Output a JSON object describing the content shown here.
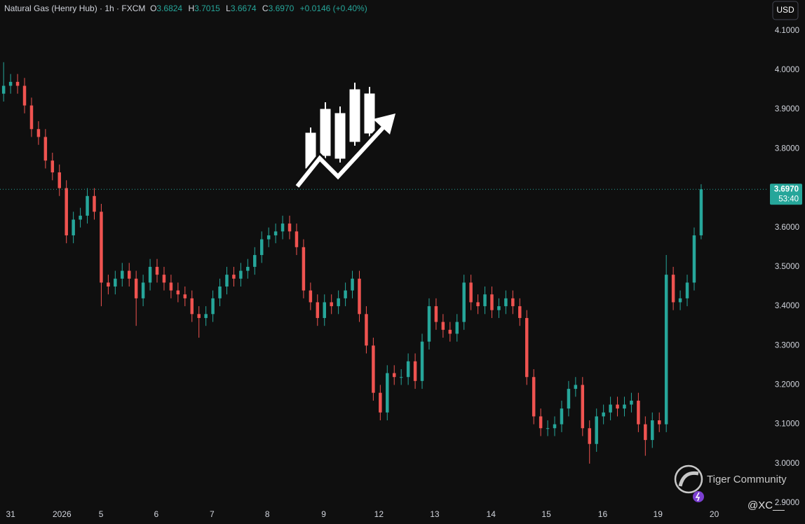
{
  "header": {
    "symbol": "Natural Gas (Henry Hub) · 1h · FXCM",
    "o_key": "O",
    "o": "3.6824",
    "h_key": "H",
    "h": "3.7015",
    "l_key": "L",
    "l": "3.6674",
    "c_key": "C",
    "c": "3.6970",
    "change": "+0.0146 (+0.40%)",
    "currency": "USD"
  },
  "watermark": {
    "brand": "Tiger Community",
    "handle": "@XC__"
  },
  "chart_data": {
    "type": "candlestick",
    "x": [
      -0.125,
      0,
      0.125,
      0.25,
      0.375,
      0.5,
      0.625,
      0.75,
      0.875,
      1,
      1.125,
      1.25,
      1.375,
      1.5,
      1.625,
      1.75,
      1.875,
      2,
      2.125,
      2.25,
      2.375,
      2.5,
      2.625,
      2.75,
      2.875,
      3,
      3.125,
      3.25,
      3.375,
      3.5,
      3.625,
      3.75,
      3.875,
      4,
      4.125,
      4.25,
      4.375,
      4.5,
      4.625,
      4.75,
      4.875,
      5,
      5.125,
      5.25,
      5.375,
      5.5,
      5.625,
      5.75,
      5.875,
      6,
      6.125,
      6.25,
      6.375,
      6.5,
      6.625,
      6.75,
      6.875,
      7,
      7.125,
      7.25,
      7.375,
      7.5,
      7.625,
      7.75,
      7.875,
      8,
      8.125,
      8.25,
      8.375,
      8.5,
      8.625,
      8.75,
      8.875,
      9,
      9.125,
      9.25,
      9.375,
      9.5,
      9.625,
      9.75,
      9.875,
      10,
      10.125,
      10.25,
      10.375,
      10.5,
      10.625,
      10.75,
      10.875,
      11,
      11.125,
      11.25,
      11.375,
      11.5,
      11.625,
      11.75,
      11.875,
      12,
      12.125,
      12.25,
      12.375
    ],
    "open": [
      3.94,
      3.96,
      3.97,
      3.96,
      3.91,
      3.85,
      3.83,
      3.77,
      3.74,
      3.7,
      3.58,
      3.62,
      3.63,
      3.68,
      3.64,
      3.46,
      3.45,
      3.47,
      3.49,
      3.47,
      3.42,
      3.46,
      3.5,
      3.48,
      3.46,
      3.44,
      3.43,
      3.42,
      3.38,
      3.37,
      3.38,
      3.42,
      3.45,
      3.48,
      3.47,
      3.49,
      3.5,
      3.53,
      3.57,
      3.58,
      3.59,
      3.61,
      3.59,
      3.55,
      3.44,
      3.41,
      3.37,
      3.41,
      3.4,
      3.42,
      3.44,
      3.47,
      3.38,
      3.3,
      3.18,
      3.13,
      3.23,
      3.22,
      3.22,
      3.26,
      3.21,
      3.31,
      3.4,
      3.36,
      3.34,
      3.33,
      3.36,
      3.46,
      3.41,
      3.4,
      3.43,
      3.39,
      3.4,
      3.42,
      3.4,
      3.37,
      3.22,
      3.12,
      3.09,
      3.09,
      3.1,
      3.14,
      3.19,
      3.2,
      3.09,
      3.05,
      3.12,
      3.13,
      3.15,
      3.14,
      3.15,
      3.16,
      3.1,
      3.06,
      3.11,
      3.1,
      3.48,
      3.41,
      3.42,
      3.46,
      3.58
    ],
    "high": [
      4.02,
      3.99,
      3.99,
      3.98,
      3.93,
      3.87,
      3.85,
      3.79,
      3.76,
      3.72,
      3.64,
      3.65,
      3.7,
      3.7,
      3.66,
      3.48,
      3.49,
      3.51,
      3.51,
      3.49,
      3.48,
      3.52,
      3.52,
      3.5,
      3.48,
      3.46,
      3.45,
      3.44,
      3.4,
      3.4,
      3.44,
      3.47,
      3.5,
      3.5,
      3.51,
      3.52,
      3.55,
      3.59,
      3.6,
      3.61,
      3.63,
      3.63,
      3.61,
      3.57,
      3.46,
      3.43,
      3.43,
      3.43,
      3.44,
      3.46,
      3.49,
      3.49,
      3.4,
      3.32,
      3.2,
      3.25,
      3.25,
      3.24,
      3.28,
      3.28,
      3.33,
      3.42,
      3.42,
      3.38,
      3.36,
      3.38,
      3.48,
      3.48,
      3.43,
      3.45,
      3.45,
      3.42,
      3.44,
      3.44,
      3.42,
      3.39,
      3.24,
      3.14,
      3.11,
      3.12,
      3.16,
      3.21,
      3.22,
      3.22,
      3.11,
      3.14,
      3.15,
      3.17,
      3.17,
      3.17,
      3.18,
      3.18,
      3.12,
      3.13,
      3.13,
      3.53,
      3.5,
      3.44,
      3.48,
      3.6,
      3.71
    ],
    "low": [
      3.92,
      3.94,
      3.94,
      3.89,
      3.83,
      3.81,
      3.75,
      3.72,
      3.68,
      3.56,
      3.56,
      3.6,
      3.61,
      3.62,
      3.4,
      3.43,
      3.43,
      3.45,
      3.45,
      3.35,
      3.4,
      3.44,
      3.46,
      3.44,
      3.42,
      3.41,
      3.4,
      3.36,
      3.32,
      3.35,
      3.36,
      3.4,
      3.43,
      3.45,
      3.45,
      3.47,
      3.48,
      3.51,
      3.55,
      3.56,
      3.57,
      3.57,
      3.53,
      3.42,
      3.39,
      3.35,
      3.35,
      3.38,
      3.38,
      3.4,
      3.42,
      3.36,
      3.28,
      3.16,
      3.11,
      3.11,
      3.2,
      3.2,
      3.2,
      3.19,
      3.19,
      3.29,
      3.34,
      3.32,
      3.31,
      3.31,
      3.34,
      3.39,
      3.38,
      3.38,
      3.37,
      3.37,
      3.38,
      3.38,
      3.35,
      3.2,
      3.1,
      3.07,
      3.07,
      3.07,
      3.08,
      3.12,
      3.17,
      3.07,
      3.0,
      3.03,
      3.1,
      3.11,
      3.12,
      3.12,
      3.13,
      3.08,
      3.02,
      3.04,
      3.08,
      3.08,
      3.39,
      3.39,
      3.4,
      3.44,
      3.57
    ],
    "close": [
      3.96,
      3.97,
      3.96,
      3.91,
      3.85,
      3.83,
      3.77,
      3.74,
      3.7,
      3.58,
      3.62,
      3.63,
      3.68,
      3.64,
      3.46,
      3.45,
      3.47,
      3.49,
      3.47,
      3.42,
      3.46,
      3.5,
      3.48,
      3.46,
      3.44,
      3.43,
      3.42,
      3.38,
      3.37,
      3.38,
      3.42,
      3.45,
      3.48,
      3.47,
      3.49,
      3.5,
      3.53,
      3.57,
      3.58,
      3.59,
      3.61,
      3.59,
      3.55,
      3.44,
      3.41,
      3.37,
      3.41,
      3.4,
      3.42,
      3.44,
      3.47,
      3.38,
      3.3,
      3.18,
      3.13,
      3.23,
      3.22,
      3.22,
      3.26,
      3.21,
      3.31,
      3.4,
      3.36,
      3.34,
      3.33,
      3.36,
      3.46,
      3.41,
      3.4,
      3.43,
      3.39,
      3.4,
      3.42,
      3.4,
      3.37,
      3.22,
      3.12,
      3.09,
      3.09,
      3.1,
      3.14,
      3.19,
      3.2,
      3.09,
      3.05,
      3.12,
      3.13,
      3.15,
      3.14,
      3.15,
      3.16,
      3.1,
      3.06,
      3.11,
      3.1,
      3.48,
      3.41,
      3.42,
      3.46,
      3.58,
      3.697
    ],
    "up_color": "#26a69a",
    "down_color": "#ef5350",
    "xlim": [
      -0.19,
      13.57
    ],
    "xticks": [
      {
        "value": 0,
        "label": "31"
      },
      {
        "value": 0.92,
        "label": "2026"
      },
      {
        "value": 1.62,
        "label": "5"
      },
      {
        "value": 2.61,
        "label": "6"
      },
      {
        "value": 3.61,
        "label": "7"
      },
      {
        "value": 4.6,
        "label": "8"
      },
      {
        "value": 5.61,
        "label": "9"
      },
      {
        "value": 6.6,
        "label": "12"
      },
      {
        "value": 7.6,
        "label": "13"
      },
      {
        "value": 8.61,
        "label": "14"
      },
      {
        "value": 9.6,
        "label": "15"
      },
      {
        "value": 10.61,
        "label": "16"
      },
      {
        "value": 11.6,
        "label": "19"
      },
      {
        "value": 12.61,
        "label": "20"
      }
    ],
    "ylim": [
      2.9,
      4.178
    ],
    "yticks": [
      {
        "value": 2.9,
        "label": "2.9000"
      },
      {
        "value": 3.0,
        "label": "3.0000"
      },
      {
        "value": 3.1,
        "label": "3.1000"
      },
      {
        "value": 3.2,
        "label": "3.2000"
      },
      {
        "value": 3.3,
        "label": "3.3000"
      },
      {
        "value": 3.4,
        "label": "3.4000"
      },
      {
        "value": 3.5,
        "label": "3.5000"
      },
      {
        "value": 3.6,
        "label": "3.6000"
      },
      {
        "value": 3.7,
        "label": "3.7000"
      },
      {
        "value": 3.8,
        "label": "3.8000"
      },
      {
        "value": 3.9,
        "label": "3.9000"
      },
      {
        "value": 4.0,
        "label": "4.0000"
      },
      {
        "value": 4.1,
        "label": "4.1000"
      }
    ],
    "grid": false,
    "last_price": {
      "value": 3.697,
      "label": "3.6970",
      "countdown": "53:40"
    }
  }
}
